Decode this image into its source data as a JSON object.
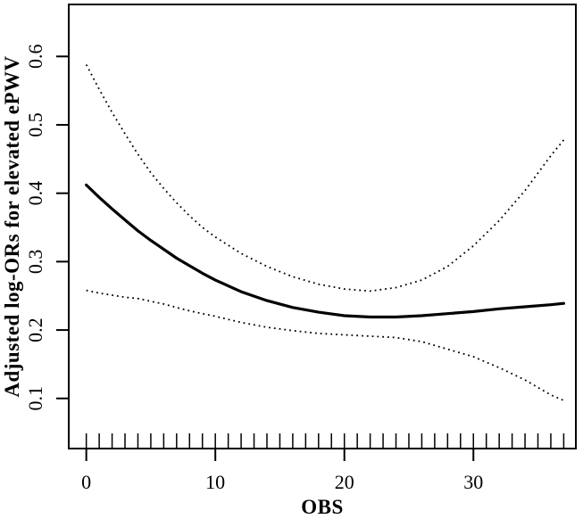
{
  "figure": {
    "background_color": "#ffffff",
    "line_color": "#000000"
  },
  "chart_data": {
    "type": "line",
    "title": "",
    "xlabel": "OBS",
    "ylabel": "Adjusted log-ORs for elevated ePWV",
    "xlim": [
      -1.36,
      37.94
    ],
    "ylim": [
      0.0267,
      0.676
    ],
    "x_ticks": [
      0,
      10,
      20,
      30
    ],
    "y_ticks": [
      0.1,
      0.2,
      0.3,
      0.4,
      0.5,
      0.6
    ],
    "grid": false,
    "legend_position": "none",
    "x": [
      0,
      1,
      2,
      3,
      4,
      5,
      6,
      7,
      8,
      9,
      10,
      12,
      14,
      16,
      18,
      20,
      22,
      24,
      26,
      28,
      30,
      32,
      34,
      36,
      37
    ],
    "series": [
      {
        "name": "adjusted-log-or-fit",
        "style": "solid",
        "stroke_width": 3.2,
        "values": [
          0.412,
          0.394,
          0.377,
          0.361,
          0.345,
          0.331,
          0.318,
          0.305,
          0.294,
          0.283,
          0.273,
          0.256,
          0.243,
          0.233,
          0.226,
          0.221,
          0.219,
          0.219,
          0.221,
          0.224,
          0.227,
          0.231,
          0.234,
          0.237,
          0.239
        ]
      },
      {
        "name": "upper-confidence-band",
        "style": "dotted",
        "stroke_width": 1.8,
        "values": [
          0.588,
          0.552,
          0.518,
          0.487,
          0.457,
          0.43,
          0.407,
          0.386,
          0.367,
          0.35,
          0.336,
          0.312,
          0.293,
          0.278,
          0.267,
          0.26,
          0.257,
          0.262,
          0.273,
          0.293,
          0.323,
          0.36,
          0.404,
          0.455,
          0.478
        ]
      },
      {
        "name": "lower-confidence-band",
        "style": "dotted",
        "stroke_width": 1.8,
        "values": [
          0.258,
          0.254,
          0.251,
          0.248,
          0.246,
          0.242,
          0.238,
          0.233,
          0.228,
          0.224,
          0.22,
          0.211,
          0.204,
          0.199,
          0.195,
          0.193,
          0.191,
          0.189,
          0.183,
          0.172,
          0.161,
          0.145,
          0.127,
          0.105,
          0.097
        ]
      }
    ],
    "rug_x": [
      0,
      1,
      2,
      3,
      4,
      5,
      6,
      7,
      8,
      9,
      10,
      11,
      12,
      13,
      14,
      15,
      16,
      17,
      18,
      19,
      20,
      21,
      22,
      23,
      24,
      25,
      26,
      27,
      28,
      29,
      30,
      31,
      32,
      33,
      34,
      35,
      36,
      37
    ]
  }
}
